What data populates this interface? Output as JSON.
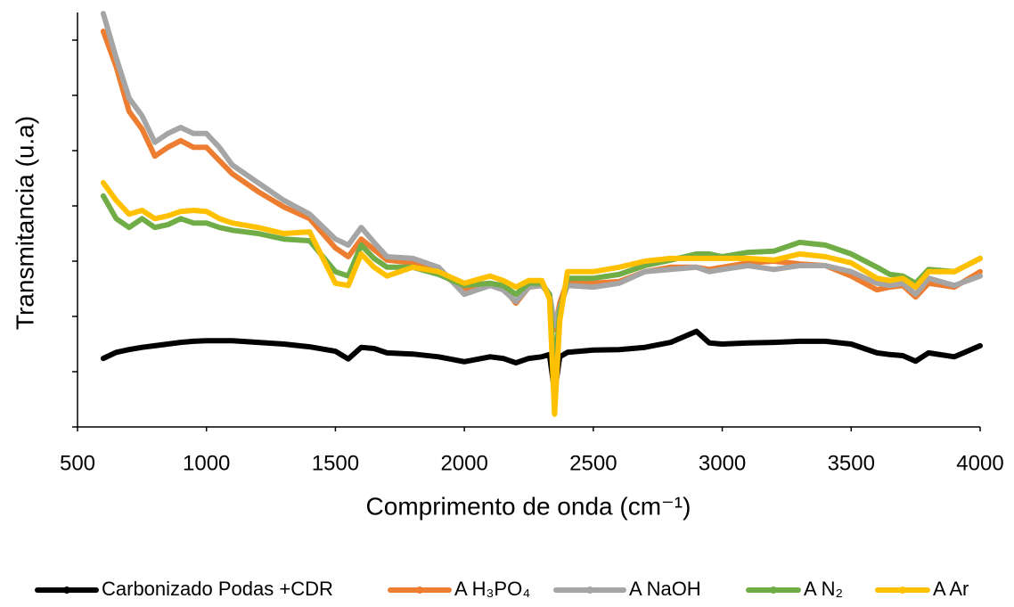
{
  "chart_data": {
    "type": "line",
    "x_label": "Comprimento de onda (cm⁻¹)",
    "y_label": "Transmitancia (u.a)",
    "xlim": [
      500,
      4000
    ],
    "xticks": [
      500,
      1000,
      1500,
      2000,
      2500,
      3000,
      3500,
      4000
    ],
    "ylim": [
      0,
      7.5
    ],
    "yticks": [
      0,
      1,
      2,
      3,
      4,
      5,
      6,
      7
    ],
    "x": [
      600,
      650,
      700,
      750,
      800,
      850,
      900,
      950,
      1000,
      1050,
      1100,
      1200,
      1300,
      1400,
      1500,
      1550,
      1600,
      1650,
      1700,
      1800,
      1900,
      2000,
      2100,
      2150,
      2200,
      2250,
      2300,
      2330,
      2350,
      2370,
      2400,
      2500,
      2600,
      2700,
      2800,
      2900,
      2950,
      3000,
      3100,
      3200,
      3300,
      3400,
      3500,
      3600,
      3650,
      3700,
      3750,
      3800,
      3900,
      4000
    ],
    "series": [
      {
        "name": "Carbonizado Podas +CDR",
        "color": "#000000",
        "values": [
          1.24,
          1.35,
          1.4,
          1.44,
          1.47,
          1.5,
          1.53,
          1.55,
          1.56,
          1.56,
          1.56,
          1.53,
          1.5,
          1.45,
          1.37,
          1.23,
          1.44,
          1.42,
          1.34,
          1.32,
          1.27,
          1.18,
          1.27,
          1.24,
          1.16,
          1.24,
          1.27,
          1.31,
          0.63,
          1.27,
          1.35,
          1.39,
          1.4,
          1.44,
          1.53,
          1.73,
          1.52,
          1.5,
          1.52,
          1.53,
          1.55,
          1.55,
          1.5,
          1.34,
          1.31,
          1.29,
          1.19,
          1.34,
          1.27,
          1.47
        ]
      },
      {
        "name": "A H₃PO₄",
        "color": "#ed7d31",
        "values": [
          7.16,
          6.52,
          5.71,
          5.39,
          4.9,
          5.06,
          5.18,
          5.06,
          5.06,
          4.82,
          4.58,
          4.26,
          3.98,
          3.77,
          3.24,
          3.08,
          3.4,
          3.21,
          3.02,
          2.97,
          2.81,
          2.48,
          2.6,
          2.53,
          2.24,
          2.53,
          2.56,
          2.4,
          1.76,
          2.24,
          2.65,
          2.6,
          2.63,
          2.81,
          2.89,
          2.89,
          2.85,
          2.89,
          2.97,
          3.0,
          2.95,
          2.92,
          2.73,
          2.48,
          2.53,
          2.56,
          2.35,
          2.6,
          2.53,
          2.81
        ]
      },
      {
        "name": "A NaOH",
        "color": "#a5a5a5",
        "values": [
          7.48,
          6.68,
          5.95,
          5.63,
          5.15,
          5.31,
          5.42,
          5.31,
          5.31,
          5.06,
          4.74,
          4.42,
          4.1,
          3.85,
          3.4,
          3.29,
          3.61,
          3.34,
          3.08,
          3.05,
          2.89,
          2.4,
          2.56,
          2.48,
          2.27,
          2.53,
          2.56,
          2.4,
          1.84,
          2.16,
          2.56,
          2.53,
          2.6,
          2.81,
          2.85,
          2.89,
          2.81,
          2.85,
          2.92,
          2.85,
          2.92,
          2.92,
          2.81,
          2.6,
          2.56,
          2.6,
          2.4,
          2.69,
          2.56,
          2.73
        ]
      },
      {
        "name": "A N₂",
        "color": "#70ad47",
        "values": [
          4.18,
          3.77,
          3.61,
          3.77,
          3.61,
          3.66,
          3.77,
          3.69,
          3.69,
          3.61,
          3.56,
          3.5,
          3.4,
          3.37,
          2.81,
          2.73,
          3.29,
          3.05,
          2.89,
          2.89,
          2.76,
          2.56,
          2.6,
          2.56,
          2.4,
          2.6,
          2.6,
          2.4,
          0.95,
          2.08,
          2.69,
          2.69,
          2.76,
          2.92,
          3.02,
          3.13,
          3.13,
          3.08,
          3.16,
          3.18,
          3.34,
          3.29,
          3.13,
          2.89,
          2.76,
          2.73,
          2.6,
          2.85,
          2.81,
          3.05
        ]
      },
      {
        "name": "A Ar",
        "color": "#ffc000",
        "values": [
          4.42,
          4.1,
          3.85,
          3.92,
          3.77,
          3.82,
          3.9,
          3.92,
          3.9,
          3.77,
          3.69,
          3.61,
          3.5,
          3.53,
          2.6,
          2.56,
          3.13,
          2.89,
          2.73,
          2.89,
          2.81,
          2.6,
          2.73,
          2.65,
          2.53,
          2.65,
          2.65,
          2.32,
          0.23,
          1.92,
          2.81,
          2.81,
          2.89,
          3.0,
          3.05,
          3.05,
          3.05,
          3.05,
          3.05,
          3.02,
          3.13,
          3.08,
          2.97,
          2.69,
          2.65,
          2.69,
          2.53,
          2.81,
          2.81,
          3.05
        ]
      }
    ]
  }
}
